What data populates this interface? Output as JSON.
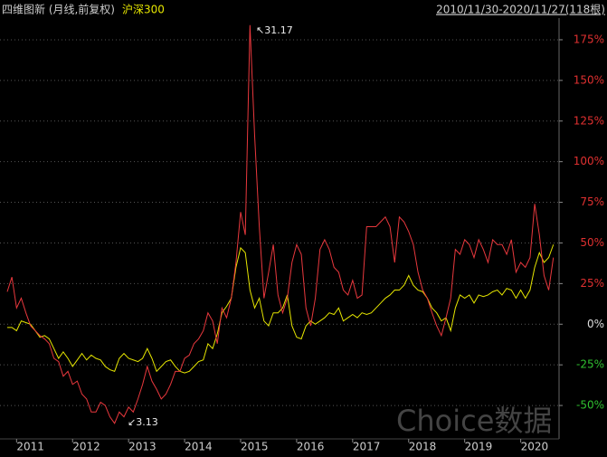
{
  "chart_data": {
    "type": "line",
    "title": "四维图新 (月线,前复权)",
    "range_label": "2010/11/30-2020/11/27(118根)",
    "watermark": "Choice数据",
    "annotations": [
      "↖31.17",
      "↙3.13"
    ],
    "categories": [
      null,
      null,
      "2011",
      null,
      null,
      null,
      null,
      null,
      null,
      null,
      null,
      null,
      null,
      null,
      "2012",
      null,
      null,
      null,
      null,
      null,
      null,
      null,
      null,
      null,
      null,
      null,
      "2013",
      null,
      null,
      null,
      null,
      null,
      null,
      null,
      null,
      null,
      null,
      null,
      "2014",
      null,
      null,
      null,
      null,
      null,
      null,
      null,
      null,
      null,
      null,
      null,
      "2015",
      null,
      null,
      null,
      null,
      null,
      null,
      null,
      null,
      null,
      null,
      null,
      "2016",
      null,
      null,
      null,
      null,
      null,
      null,
      null,
      null,
      null,
      null,
      null,
      "2017",
      null,
      null,
      null,
      null,
      null,
      null,
      null,
      null,
      null,
      null,
      null,
      "2018",
      null,
      null,
      null,
      null,
      null,
      null,
      null,
      null,
      null,
      null,
      null,
      "2019",
      null,
      null,
      null,
      null,
      null,
      null,
      null,
      null,
      null,
      null,
      null,
      "2020",
      null,
      null,
      null,
      null,
      null,
      null,
      null
    ],
    "series": [
      {
        "name": "四维图新",
        "color": "#e8383d",
        "values": [
          20,
          29,
          10,
          16,
          7,
          -1,
          -4,
          -7,
          -9,
          -12,
          -21,
          -23,
          -32,
          -29,
          -37,
          -35,
          -43,
          -46,
          -54,
          -54,
          -48,
          -50,
          -57,
          -61,
          -54,
          -57,
          -51,
          -54,
          -46,
          -37,
          -26,
          -35,
          -40,
          -46,
          -43,
          -37,
          -29,
          -29,
          -21,
          -19,
          -12,
          -9,
          -4,
          7,
          2,
          -12,
          10,
          4,
          16,
          38,
          69,
          55,
          184,
          116,
          60,
          16,
          32,
          49,
          18,
          7,
          16,
          38,
          49,
          43,
          10,
          -1,
          16,
          46,
          52,
          46,
          35,
          32,
          21,
          18,
          27,
          16,
          18,
          60,
          60,
          60,
          63,
          66,
          60,
          38,
          66,
          63,
          57,
          49,
          32,
          21,
          16,
          7,
          -1,
          -7,
          4,
          16,
          46,
          43,
          52,
          49,
          41,
          52,
          46,
          38,
          52,
          49,
          49,
          43,
          52,
          32,
          38,
          35,
          41,
          74,
          55,
          30,
          21,
          41
        ]
      },
      {
        "name": "沪深300",
        "color": "#e6e600",
        "values": [
          -2,
          -2,
          -4,
          2,
          1,
          0,
          -4,
          -8,
          -7,
          -9,
          -15,
          -21,
          -17,
          -21,
          -26,
          -22,
          -18,
          -22,
          -19,
          -21,
          -22,
          -26,
          -28,
          -29,
          -21,
          -18,
          -21,
          -22,
          -23,
          -21,
          -15,
          -21,
          -29,
          -26,
          -23,
          -22,
          -26,
          -29,
          -30,
          -29,
          -26,
          -23,
          -22,
          -12,
          -15,
          -6,
          7,
          11,
          16,
          35,
          47,
          44,
          21,
          10,
          16,
          2,
          -1,
          7,
          7,
          10,
          18,
          -1,
          -8,
          -9,
          -1,
          2,
          0,
          2,
          4,
          7,
          6,
          10,
          2,
          4,
          6,
          4,
          7,
          6,
          7,
          10,
          13,
          16,
          18,
          21,
          21,
          24,
          30,
          24,
          21,
          20,
          16,
          10,
          7,
          2,
          4,
          -4,
          10,
          18,
          16,
          18,
          13,
          18,
          17,
          18,
          20,
          21,
          18,
          22,
          21,
          16,
          21,
          16,
          21,
          35,
          44,
          38,
          41,
          49
        ]
      }
    ],
    "ylim": [
      -70,
      190
    ],
    "yticks": [
      {
        "value": -50,
        "label": "-50%"
      },
      {
        "value": -25,
        "label": "-25%"
      },
      {
        "value": 0,
        "label": "0%"
      },
      {
        "value": 25,
        "label": "25%"
      },
      {
        "value": 50,
        "label": "50%"
      },
      {
        "value": 75,
        "label": "75%"
      },
      {
        "value": 100,
        "label": "100%"
      },
      {
        "value": 125,
        "label": "125%"
      },
      {
        "value": 150,
        "label": "150%"
      },
      {
        "value": 175,
        "label": "175%"
      }
    ],
    "grid": true
  }
}
